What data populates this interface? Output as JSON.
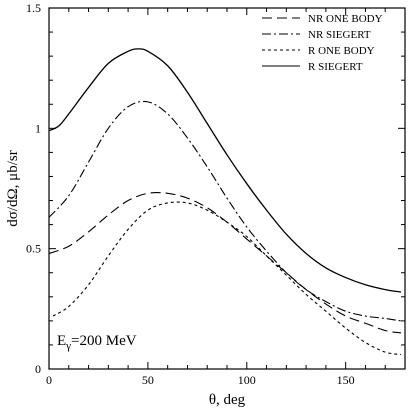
{
  "chart_data": {
    "type": "line",
    "xlabel": "θ, deg",
    "ylabel": "dσ/dΩ, μb/sr",
    "xlim": [
      0,
      180
    ],
    "ylim": [
      0,
      1.5
    ],
    "xticks": [
      0,
      50,
      100,
      150
    ],
    "yticks": [
      0,
      0.5,
      1,
      1.5
    ],
    "xtick_labels": [
      "0",
      "50",
      "100",
      "150"
    ],
    "ytick_labels": [
      "0",
      "0.5",
      "1",
      "1.5"
    ],
    "grid": false,
    "legend_position": "top-right",
    "annotation": {
      "prefix": "E",
      "sub": "γ",
      "suffix": "=200 MeV"
    },
    "series": [
      {
        "name": "NR ONE BODY",
        "dash": "long-dash",
        "x": [
          0,
          10,
          20,
          30,
          40,
          50,
          60,
          70,
          80,
          90,
          100,
          110,
          120,
          130,
          140,
          150,
          160,
          170,
          178
        ],
        "y": [
          0.48,
          0.51,
          0.57,
          0.64,
          0.7,
          0.73,
          0.73,
          0.71,
          0.67,
          0.61,
          0.54,
          0.47,
          0.4,
          0.33,
          0.27,
          0.22,
          0.19,
          0.16,
          0.15
        ]
      },
      {
        "name": "NR SIEGERT",
        "dash": "dash-dot",
        "x": [
          0,
          10,
          20,
          30,
          40,
          50,
          60,
          70,
          80,
          90,
          100,
          110,
          120,
          130,
          140,
          150,
          160,
          170,
          178
        ],
        "y": [
          0.63,
          0.72,
          0.86,
          1.0,
          1.09,
          1.11,
          1.06,
          0.96,
          0.84,
          0.71,
          0.59,
          0.49,
          0.4,
          0.33,
          0.28,
          0.24,
          0.22,
          0.21,
          0.2
        ]
      },
      {
        "name": "R ONE BODY",
        "dash": "short-dash",
        "x": [
          2,
          10,
          20,
          30,
          40,
          50,
          60,
          70,
          80,
          90,
          100,
          110,
          120,
          130,
          140,
          150,
          160,
          170,
          178
        ],
        "y": [
          0.22,
          0.26,
          0.35,
          0.47,
          0.58,
          0.66,
          0.69,
          0.69,
          0.66,
          0.61,
          0.55,
          0.47,
          0.39,
          0.31,
          0.24,
          0.17,
          0.11,
          0.07,
          0.06
        ]
      },
      {
        "name": "R SIEGERT",
        "dash": "solid",
        "x": [
          0,
          5,
          10,
          20,
          30,
          40,
          45,
          50,
          60,
          70,
          80,
          90,
          100,
          110,
          120,
          130,
          140,
          150,
          160,
          170,
          178
        ],
        "y": [
          0.99,
          1.01,
          1.06,
          1.17,
          1.27,
          1.32,
          1.33,
          1.32,
          1.26,
          1.15,
          1.02,
          0.89,
          0.77,
          0.66,
          0.56,
          0.48,
          0.42,
          0.38,
          0.35,
          0.33,
          0.32
        ]
      }
    ]
  }
}
